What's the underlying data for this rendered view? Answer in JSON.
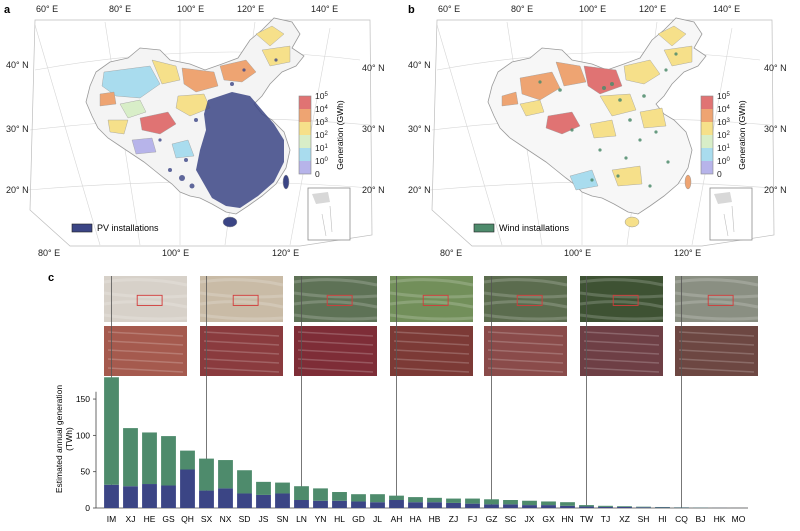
{
  "panels": {
    "a": {
      "letter": "a",
      "lon_ticks_top": [
        "60° E",
        "80° E",
        "100° E",
        "120° E",
        "140° E"
      ],
      "lon_ticks_bottom": [
        "80° E",
        "100° E",
        "120° E"
      ],
      "lat_ticks_left": [
        "40° N",
        "30° N",
        "20° N"
      ],
      "lat_ticks_right": [
        "40° N",
        "30° N",
        "20° N"
      ],
      "legend_label": "PV installations",
      "legend_color": "#3b4585"
    },
    "b": {
      "letter": "b",
      "lon_ticks_top": [
        "60° E",
        "80° E",
        "100° E",
        "120° E",
        "140° E"
      ],
      "lon_ticks_bottom": [
        "80° E",
        "100° E",
        "120° E"
      ],
      "lat_ticks_left": [
        "40° N",
        "30° N",
        "20° N"
      ],
      "lat_ticks_right": [
        "40° N",
        "30° N",
        "20° N"
      ],
      "legend_label": "Wind installations",
      "legend_color": "#4e8b6c"
    },
    "c": {
      "letter": "c"
    }
  },
  "colorbar": {
    "title": "Generation (GWh)",
    "ticks": [
      {
        "base": "10",
        "exp": "5"
      },
      {
        "base": "10",
        "exp": "4"
      },
      {
        "base": "10",
        "exp": "3"
      },
      {
        "base": "10",
        "exp": "2"
      },
      {
        "base": "10",
        "exp": "1"
      },
      {
        "base": "10",
        "exp": "0"
      },
      {
        "base": "0",
        "exp": ""
      }
    ],
    "colors": [
      "#e07373",
      "#eea472",
      "#f6e08a",
      "#d8eec8",
      "#a9dcee",
      "#b7b4ea",
      "#ffffff"
    ]
  },
  "colors": {
    "pv": "#3b4585",
    "wind": "#4e8b6c",
    "map_land": "#f4f4f4",
    "border": "#9a9a9a"
  },
  "chart_data": {
    "type": "bar",
    "stacked": true,
    "ylabel": "Estimated annual generation\n(TWh)",
    "ylim": [
      0,
      190
    ],
    "yticks": [
      0,
      50,
      100,
      150
    ],
    "categories": [
      "IM",
      "XJ",
      "HE",
      "GS",
      "QH",
      "SX",
      "NX",
      "SD",
      "JS",
      "SN",
      "LN",
      "YN",
      "HL",
      "GD",
      "JL",
      "AH",
      "HA",
      "HB",
      "ZJ",
      "FJ",
      "GZ",
      "SC",
      "JX",
      "GX",
      "HN",
      "TW",
      "TJ",
      "XZ",
      "SH",
      "HI",
      "CQ",
      "BJ",
      "HK",
      "MO"
    ],
    "series": [
      {
        "values": [
          32,
          30,
          33,
          31,
          53,
          24,
          27,
          20,
          18,
          20,
          11,
          10,
          10,
          9,
          8,
          11,
          8,
          8,
          7,
          6,
          5,
          5,
          4,
          4,
          3,
          2,
          1.5,
          1.5,
          1,
          0.8,
          0.5,
          0.3,
          0.1,
          0.05
        ]
      },
      {
        "values": [
          148,
          80,
          71,
          68,
          26,
          44,
          39,
          32,
          18,
          15,
          19,
          17,
          12,
          10,
          11,
          6,
          7,
          6,
          6,
          7,
          7,
          6,
          6,
          5,
          5,
          2,
          1.5,
          1,
          0.8,
          0.6,
          0.4,
          0.3,
          0.05,
          0.02
        ]
      }
    ],
    "grid": false,
    "legend": "none"
  },
  "insets": [
    {
      "name": "IM",
      "top_tone": "#d7d1c9",
      "bottom_tone": "#a55a4e"
    },
    {
      "name": "SX",
      "top_tone": "#c9bba6",
      "bottom_tone": "#8a3b3e"
    },
    {
      "name": "LN",
      "top_tone": "#5e7256",
      "bottom_tone": "#7e2d37"
    },
    {
      "name": "AH",
      "top_tone": "#728f5a",
      "bottom_tone": "#7c3a36"
    },
    {
      "name": "GZ",
      "top_tone": "#5b6c4e",
      "bottom_tone": "#8a4b4a"
    },
    {
      "name": "TW",
      "top_tone": "#3e5233",
      "bottom_tone": "#6e3f45"
    },
    {
      "name": "CQ",
      "top_tone": "#8a8f82",
      "bottom_tone": "#6d4742"
    }
  ]
}
